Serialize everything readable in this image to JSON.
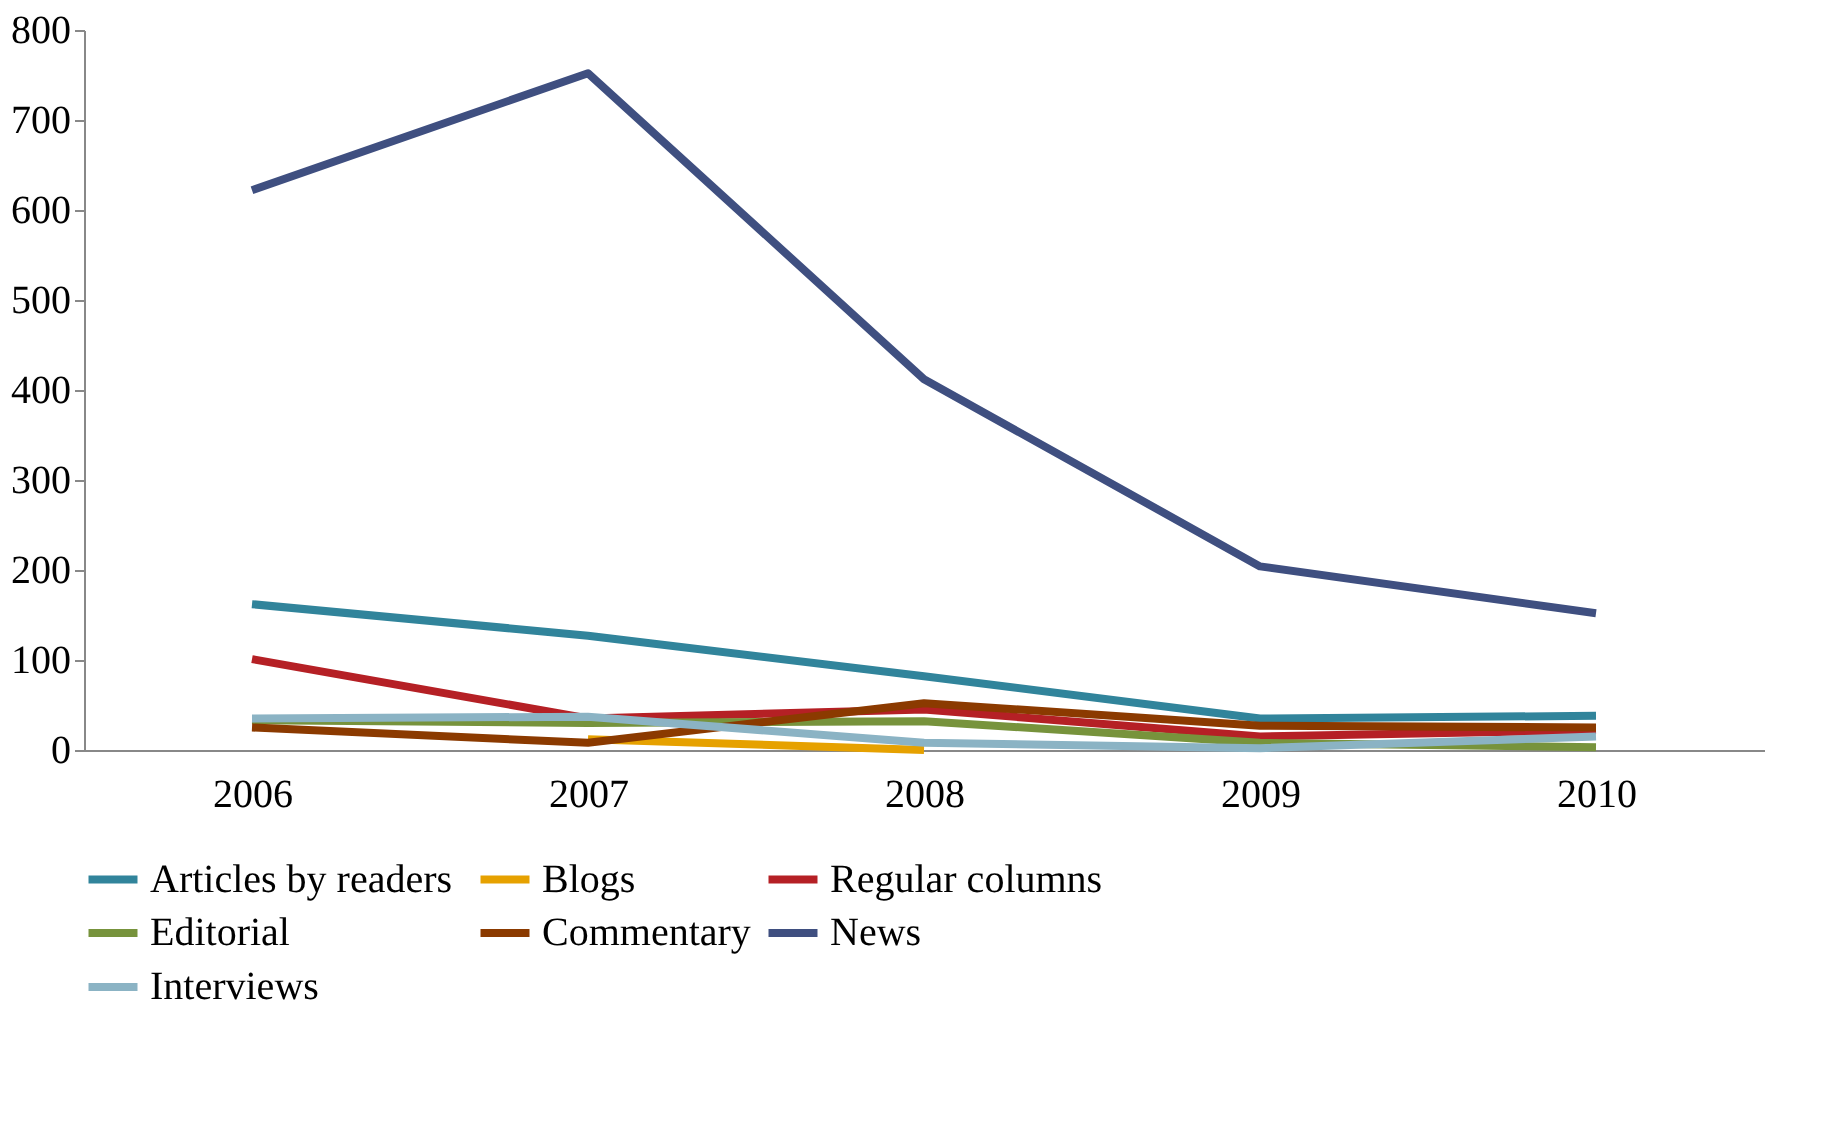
{
  "chart_data": {
    "type": "line",
    "categories": [
      "2006",
      "2007",
      "2008",
      "2009",
      "2010"
    ],
    "series": [
      {
        "name": "Articles  by readers",
        "color": "#31849b",
        "values": [
          162,
          127,
          82,
          35,
          38
        ]
      },
      {
        "name": "Blogs",
        "color": "#e6a100",
        "values": [
          null,
          12,
          0,
          null,
          null
        ]
      },
      {
        "name": "Regular columns",
        "color": "#b52025",
        "values": [
          101,
          35,
          45,
          15,
          22
        ]
      },
      {
        "name": "Editorial",
        "color": "#77933c",
        "values": [
          33,
          30,
          32,
          8,
          3
        ]
      },
      {
        "name": "Commentary",
        "color": "#8b3a00",
        "values": [
          25,
          8,
          52,
          27,
          25
        ]
      },
      {
        "name": "News",
        "color": "#3f4f80",
        "values": [
          622,
          752,
          412,
          204,
          152
        ]
      },
      {
        "name": "Interviews",
        "color": "#8bb3c4",
        "values": [
          35,
          37,
          8,
          2,
          15
        ]
      }
    ],
    "ylim": [
      0,
      800
    ],
    "yticks": [
      0,
      100,
      200,
      300,
      400,
      500,
      600,
      700,
      800
    ],
    "grid": false,
    "legend": "bottom",
    "marker": "none",
    "line_style": "solid"
  }
}
